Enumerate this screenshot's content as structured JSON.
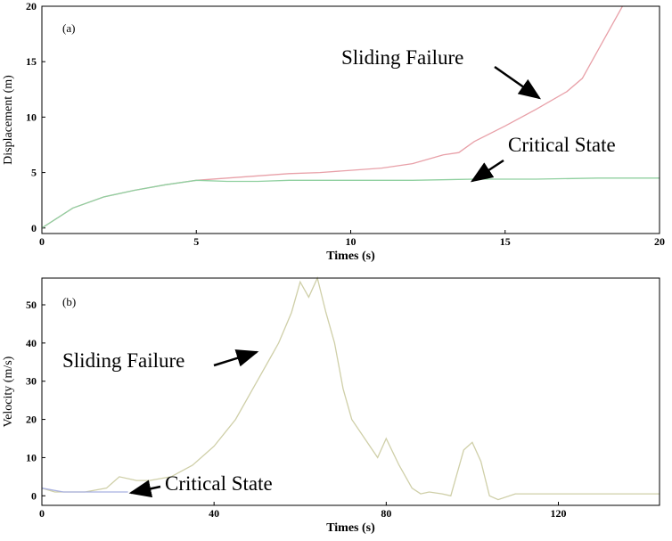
{
  "chart_data": [
    {
      "type": "line",
      "panel": "(a)",
      "xlabel": "Times (s)",
      "ylabel": "Displacement (m)",
      "xlim": [
        0,
        20
      ],
      "ylim": [
        -0.5,
        20
      ],
      "xticks": [
        0,
        5,
        10,
        15,
        20
      ],
      "yticks": [
        0,
        5,
        10,
        15,
        20
      ],
      "annotations": [
        "Sliding Failure",
        "Critical State"
      ],
      "series": [
        {
          "name": "Sliding Failure",
          "color": "#e8a0a8",
          "x": [
            0,
            1,
            2,
            3,
            4,
            5,
            6,
            7,
            8,
            9,
            10,
            11,
            12,
            13,
            13.5,
            14,
            15,
            16,
            17,
            17.5,
            18,
            18.5,
            18.8
          ],
          "values": [
            0,
            1.8,
            2.8,
            3.4,
            3.9,
            4.3,
            4.5,
            4.7,
            4.9,
            5.0,
            5.2,
            5.4,
            5.8,
            6.6,
            6.8,
            7.8,
            9.2,
            10.7,
            12.3,
            13.5,
            16,
            18.5,
            20
          ]
        },
        {
          "name": "Critical State",
          "color": "#90d0a0",
          "x": [
            0,
            1,
            2,
            3,
            4,
            5,
            6,
            7,
            8,
            10,
            12,
            14,
            16,
            18,
            20
          ],
          "values": [
            0,
            1.8,
            2.8,
            3.4,
            3.9,
            4.3,
            4.2,
            4.2,
            4.3,
            4.3,
            4.3,
            4.4,
            4.4,
            4.5,
            4.5
          ]
        }
      ]
    },
    {
      "type": "line",
      "panel": "(b)",
      "xlabel": "Times (s)",
      "ylabel": "Velocity (m/s)",
      "xlim": [
        0,
        143.5
      ],
      "ylim": [
        -2.5,
        57
      ],
      "xticks": [
        0,
        40,
        80,
        120
      ],
      "yticks": [
        0,
        10,
        20,
        30,
        40,
        50
      ],
      "annotations": [
        "Sliding Failure",
        "Critical State"
      ],
      "series": [
        {
          "name": "Sliding Failure",
          "color": "#cfcfa8",
          "x": [
            0,
            3,
            10,
            15,
            18,
            22,
            25,
            30,
            35,
            40,
            45,
            50,
            53,
            55,
            58,
            60,
            62,
            64,
            66,
            68,
            70,
            72,
            75,
            78,
            80,
            83,
            86,
            88,
            90,
            93,
            95,
            98,
            100,
            102,
            104,
            106,
            110,
            120,
            130,
            143.5
          ],
          "values": [
            2,
            1,
            1,
            2,
            5,
            4,
            4,
            5,
            8,
            13,
            20,
            30,
            36,
            40,
            48,
            56,
            52,
            57,
            48,
            40,
            28,
            20,
            15,
            10,
            15,
            8,
            2,
            0.5,
            1,
            0.5,
            0,
            12,
            14,
            9,
            0,
            -1,
            0.5,
            0.5,
            0.5,
            0.5
          ]
        },
        {
          "name": "Critical State",
          "color": "#a8b0e0",
          "x": [
            0,
            5,
            10,
            20
          ],
          "values": [
            2,
            1,
            1,
            1
          ]
        }
      ]
    }
  ]
}
